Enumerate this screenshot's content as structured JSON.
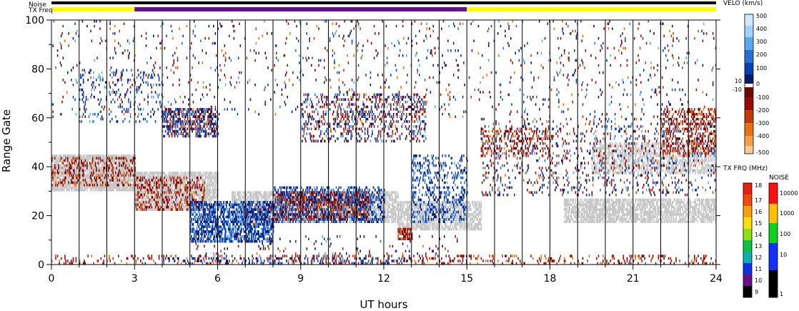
{
  "chart_data": {
    "type": "heatmap",
    "xlabel": "UT hours",
    "ylabel": "Range Gate",
    "xlim": [
      0,
      24
    ],
    "ylim": [
      0,
      100
    ],
    "x_ticks": [
      "0",
      "3",
      "6",
      "9",
      "12",
      "15",
      "18",
      "21",
      "24"
    ],
    "y_ticks": [
      "0",
      "20",
      "40",
      "60",
      "80",
      "100"
    ],
    "scan_boundaries_hours": [
      0,
      1,
      2,
      3,
      4,
      5,
      6,
      7,
      8,
      9,
      10,
      11,
      12,
      13,
      14,
      15,
      16,
      17,
      18,
      19,
      20,
      21,
      22,
      23,
      24
    ],
    "status_bars": {
      "noise_label": "Noise",
      "txfreq_label": "TX Freq",
      "tx_freq_segments": [
        {
          "start_hour": 0,
          "end_hour": 3,
          "color": "#ffff00"
        },
        {
          "start_hour": 3,
          "end_hour": 15,
          "color": "#6a0f8a"
        },
        {
          "start_hour": 15,
          "end_hour": 24,
          "color": "#ffff00"
        }
      ],
      "noise_color": "#000000"
    },
    "ground_scatter_color": "#c8c8c8",
    "echo_regions": [
      {
        "kind": "ground_scatter",
        "t0": 0.0,
        "t1": 3.0,
        "g0": 30,
        "g1": 45,
        "density": 0.85
      },
      {
        "kind": "ground_scatter",
        "t0": 3.0,
        "t1": 6.0,
        "g0": 22,
        "g1": 38,
        "density": 0.8
      },
      {
        "kind": "ground_scatter",
        "t0": 6.5,
        "t1": 12.5,
        "g0": 17,
        "g1": 30,
        "density": 0.7
      },
      {
        "kind": "ground_scatter",
        "t0": 12.5,
        "t1": 15.5,
        "g0": 14,
        "g1": 26,
        "density": 0.7
      },
      {
        "kind": "ground_scatter",
        "t0": 18.5,
        "t1": 24.0,
        "g0": 17,
        "g1": 27,
        "density": 0.7
      },
      {
        "kind": "ground_scatter",
        "t0": 19.5,
        "t1": 24.0,
        "g0": 37,
        "g1": 50,
        "density": 0.55
      },
      {
        "kind": "negative",
        "t0": 0.0,
        "t1": 3.0,
        "g0": 32,
        "g1": 44,
        "density": 0.25
      },
      {
        "kind": "negative",
        "t0": 3.0,
        "t1": 5.5,
        "g0": 22,
        "g1": 36,
        "density": 0.3
      },
      {
        "kind": "negative",
        "t0": 8.0,
        "t1": 11.5,
        "g0": 18,
        "g1": 30,
        "density": 0.55
      },
      {
        "kind": "negative",
        "t0": 7.0,
        "t1": 8.0,
        "g0": 16,
        "g1": 26,
        "density": 0.3
      },
      {
        "kind": "negative",
        "t0": 12.5,
        "t1": 13.0,
        "g0": 10,
        "g1": 15,
        "density": 0.7
      },
      {
        "kind": "negative",
        "t0": 22.0,
        "t1": 24.0,
        "g0": 45,
        "g1": 64,
        "density": 0.3
      },
      {
        "kind": "negative",
        "t0": 15.5,
        "t1": 18.0,
        "g0": 44,
        "g1": 56,
        "density": 0.2
      },
      {
        "kind": "negative",
        "t0": 0.0,
        "t1": 24.0,
        "g0": 0,
        "g1": 4,
        "density": 0.18
      },
      {
        "kind": "negative",
        "t0": 4.0,
        "t1": 6.0,
        "g0": 52,
        "g1": 64,
        "density": 0.3
      },
      {
        "kind": "positive",
        "t0": 5.0,
        "t1": 8.0,
        "g0": 9,
        "g1": 26,
        "density": 0.6
      },
      {
        "kind": "positive",
        "t0": 8.0,
        "t1": 12.0,
        "g0": 17,
        "g1": 32,
        "density": 0.35
      },
      {
        "kind": "positive",
        "t0": 13.0,
        "t1": 15.0,
        "g0": 17,
        "g1": 45,
        "density": 0.25
      },
      {
        "kind": "positive",
        "t0": 4.0,
        "t1": 13.0,
        "g0": 0,
        "g1": 3,
        "density": 0.2
      },
      {
        "kind": "positive",
        "t0": 1.0,
        "t1": 4.0,
        "g0": 58,
        "g1": 80,
        "density": 0.1
      },
      {
        "kind": "positive",
        "t0": 4.0,
        "t1": 6.0,
        "g0": 52,
        "g1": 64,
        "density": 0.3
      },
      {
        "kind": "mixed",
        "t0": 9.0,
        "t1": 13.5,
        "g0": 50,
        "g1": 70,
        "density": 0.25
      },
      {
        "kind": "mixed",
        "t0": 15.5,
        "t1": 24.0,
        "g0": 28,
        "g1": 60,
        "density": 0.12
      },
      {
        "kind": "mixed",
        "t0": 0.0,
        "t1": 24.0,
        "g0": 60,
        "g1": 100,
        "density": 0.035
      },
      {
        "kind": "mixed",
        "t0": 5.0,
        "t1": 15.0,
        "g0": 3,
        "g1": 12,
        "density": 0.05
      }
    ],
    "colorbars": [
      {
        "title": "VELO (km/s)",
        "labels": [
          "500",
          "400",
          "300",
          "200",
          "100",
          "0",
          "10",
          "-10",
          "-100",
          "-200",
          "-300",
          "-400",
          "-500"
        ],
        "colors": [
          "#cfe9ff",
          "#9fd3ff",
          "#5aa9f0",
          "#2a6fd6",
          "#0a3fb0",
          "#021a6e",
          "#ffffff",
          "#6a0a0a",
          "#9a0a0a",
          "#c23a0a",
          "#e8720f",
          "#f4a04a",
          "#f7c98e"
        ]
      },
      {
        "title": "TX FRQ (MHz)",
        "labels": [
          "18",
          "17",
          "16",
          "15",
          "14",
          "13",
          "12",
          "11",
          "10",
          "9"
        ],
        "colors": [
          "#e82010",
          "#f04a10",
          "#f8a010",
          "#f8e010",
          "#8ce010",
          "#10c040",
          "#10b0b0",
          "#1030e0",
          "#6a0f8a",
          "#000000"
        ]
      },
      {
        "title": "NOISE",
        "labels": [
          "10000",
          "1000",
          "100",
          "10",
          "1"
        ],
        "colors": [
          "#ff1010",
          "#ffc000",
          "#10d020",
          "#1030ff",
          "#000000"
        ]
      }
    ]
  }
}
